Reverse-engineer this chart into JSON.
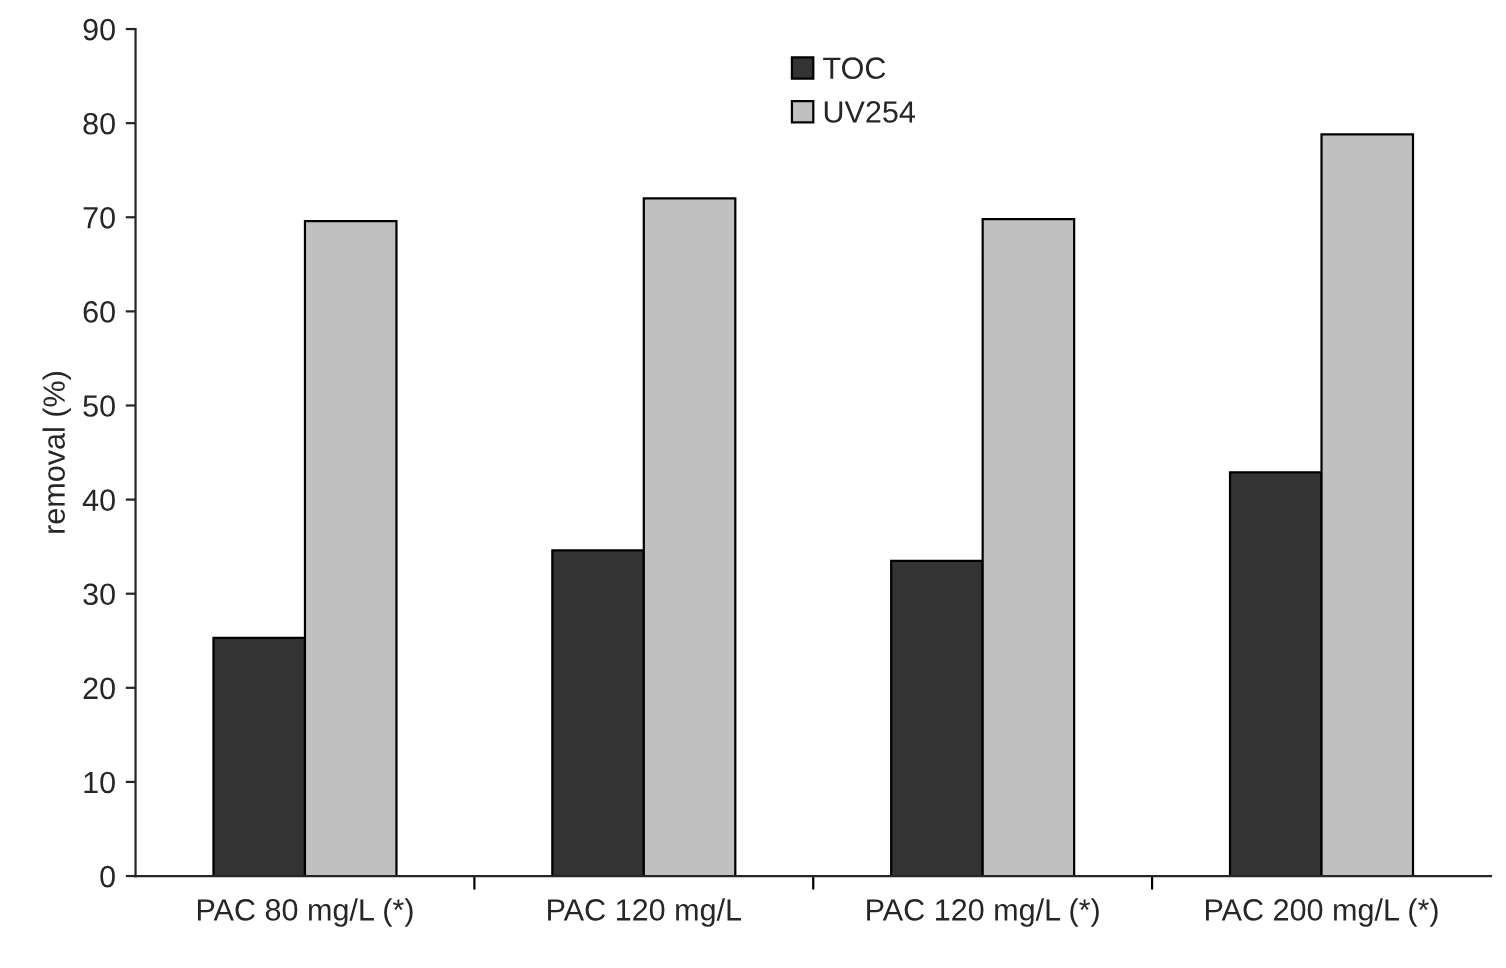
{
  "chart_data": {
    "type": "bar",
    "ylabel": "removal (%)",
    "categories": [
      "PAC 80 mg/L (*)",
      "PAC 120 mg/L",
      "PAC 120 mg/L (*)",
      "PAC 200 mg/L (*)"
    ],
    "series": [
      {
        "name": "TOC",
        "color": "#333333",
        "values": [
          25.3,
          34.6,
          33.5,
          42.9
        ]
      },
      {
        "name": "UV254",
        "color": "#c0c0c0",
        "values": [
          69.6,
          72.0,
          69.8,
          78.8
        ]
      }
    ],
    "ylim": [
      0,
      90
    ],
    "yticks": [
      0,
      10,
      20,
      30,
      40,
      50,
      60,
      70,
      80,
      90
    ],
    "grid": false,
    "legend": "top"
  }
}
